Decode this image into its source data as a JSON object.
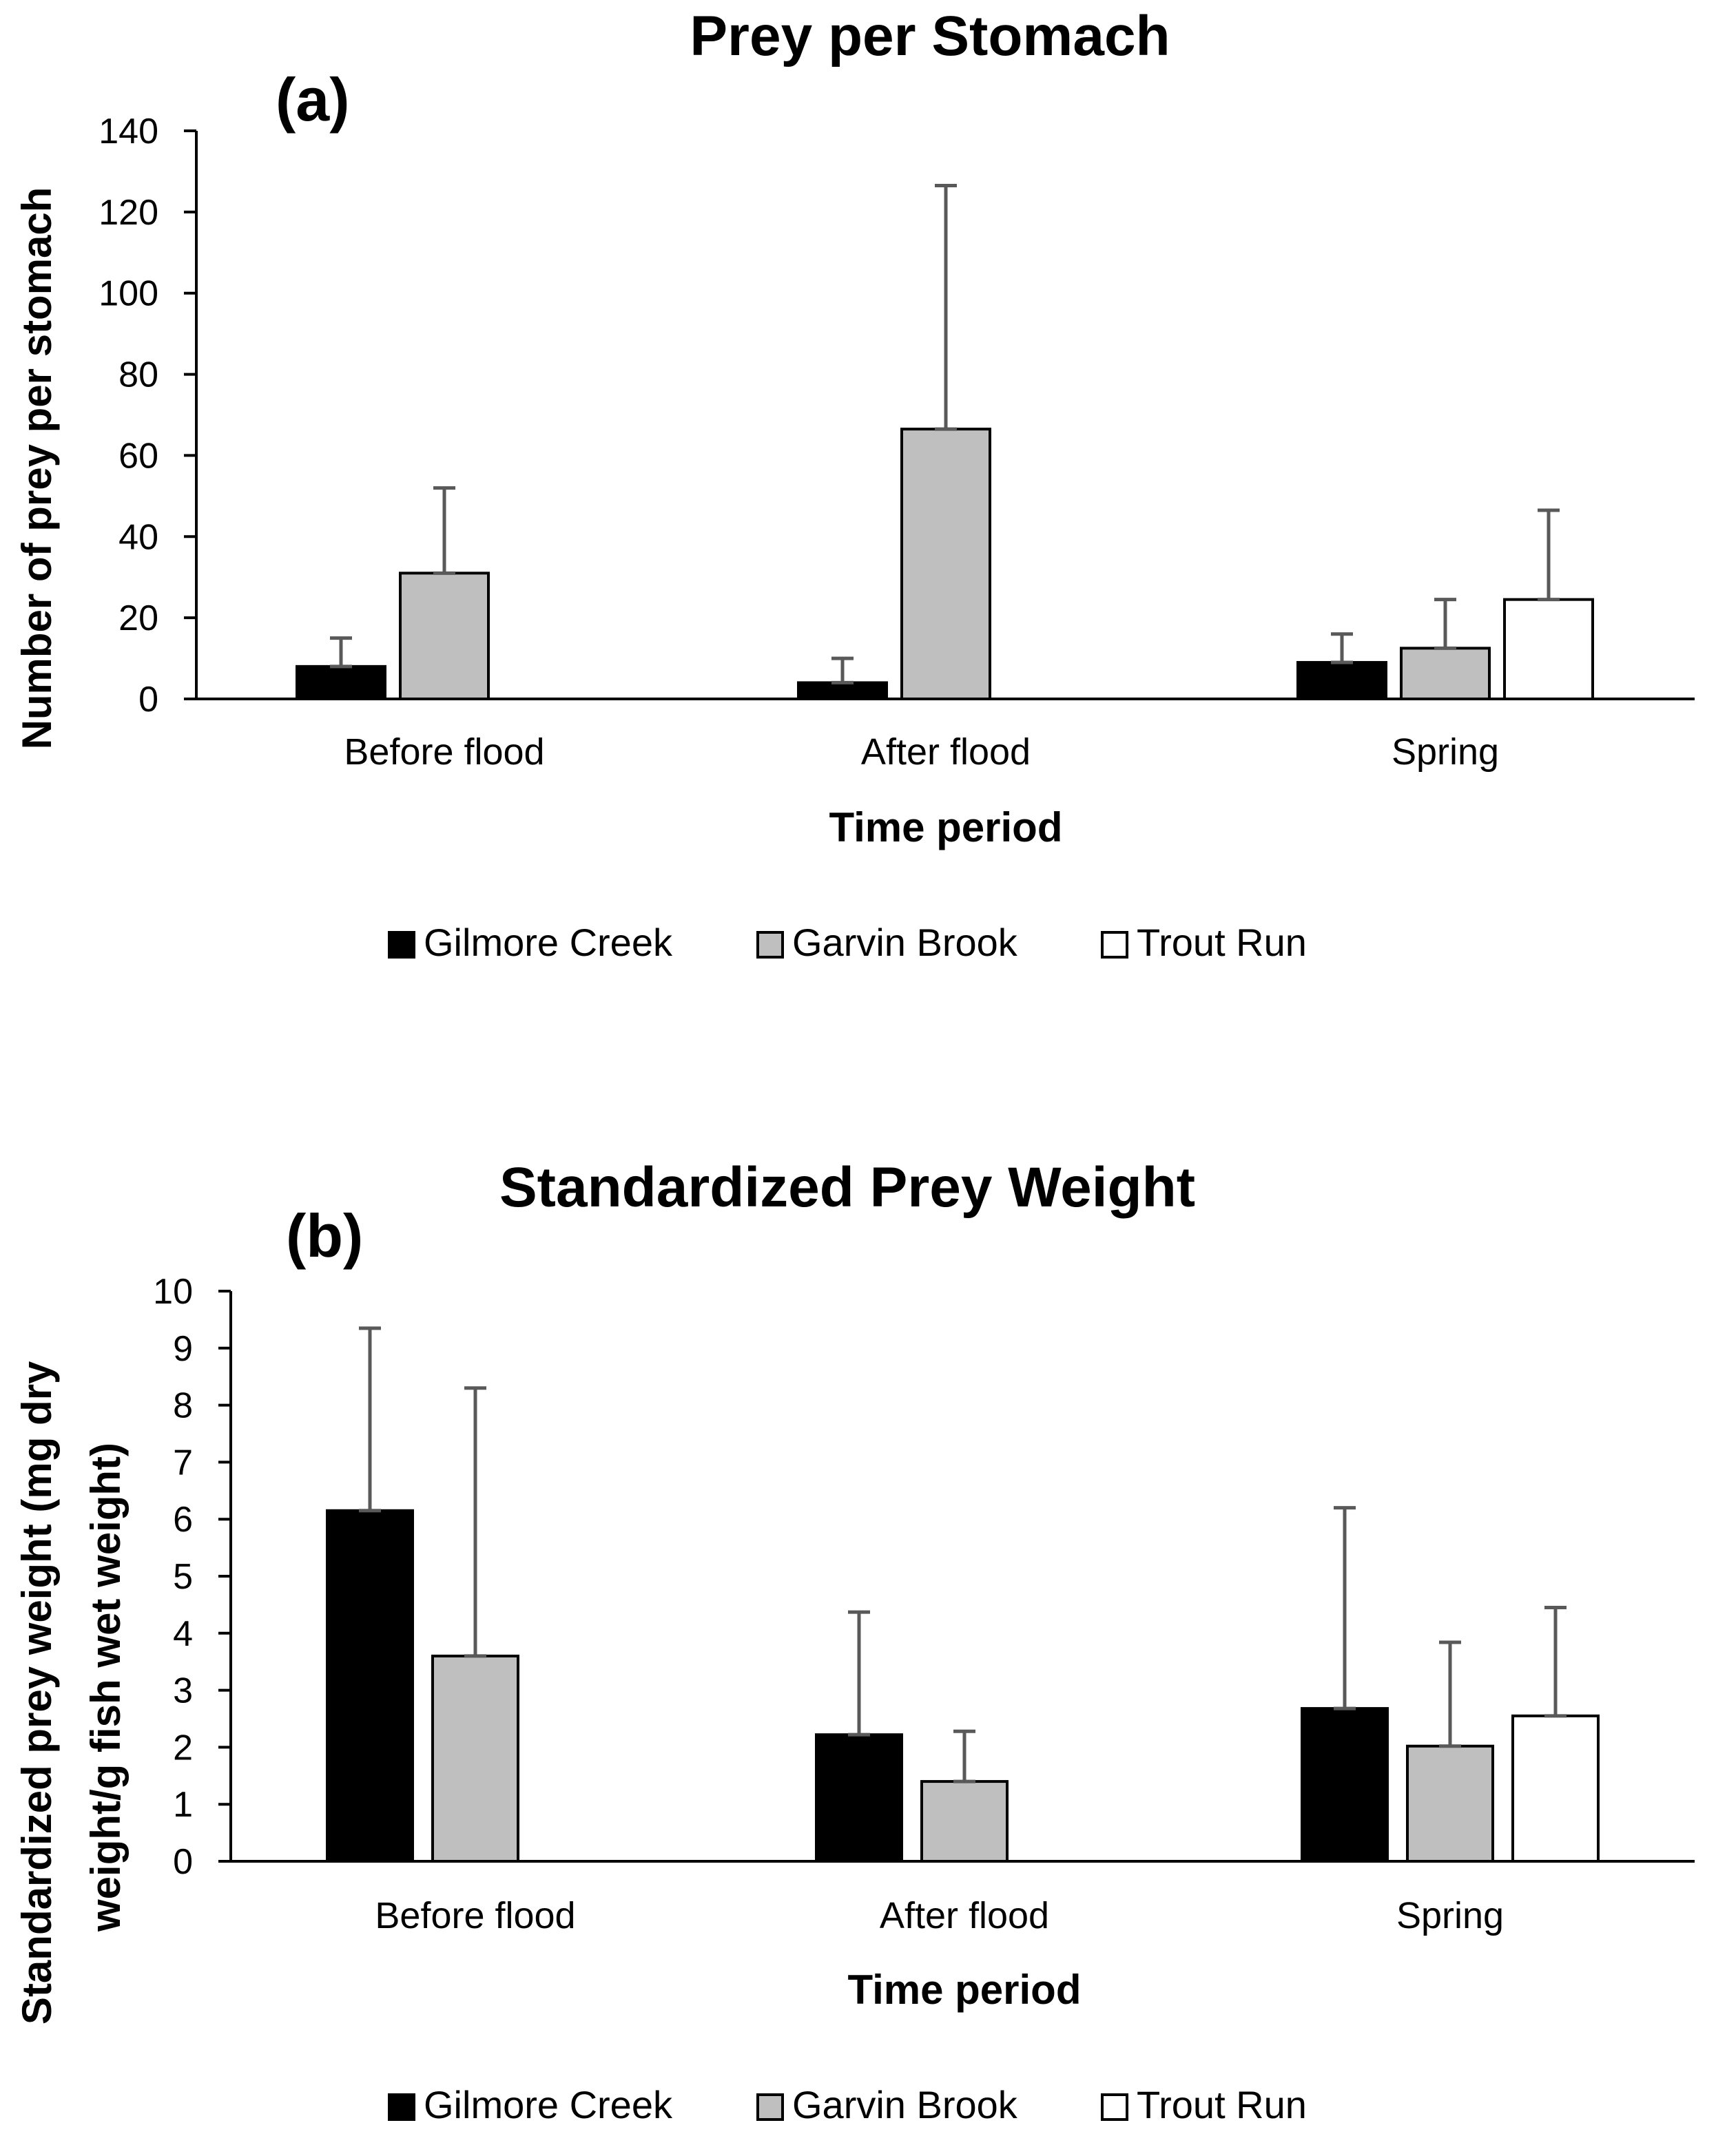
{
  "chart_data": [
    {
      "type": "bar",
      "panel": "(a)",
      "title": "Prey per Stomach",
      "xlabel": "Time period",
      "ylabel": "Number of prey per stomach",
      "ylim": [
        0,
        140
      ],
      "yticks": [
        0,
        20,
        40,
        60,
        80,
        100,
        120,
        140
      ],
      "categories": [
        "Before flood",
        "After flood",
        "Spring"
      ],
      "series": [
        {
          "name": "Gilmore Creek",
          "color": "#000000",
          "values": [
            8,
            4,
            9
          ],
          "error_plus": [
            7,
            6,
            7
          ]
        },
        {
          "name": "Garvin Brook",
          "color": "#bfbfbf",
          "values": [
            31,
            66.5,
            12.5
          ],
          "error_plus": [
            21,
            60,
            12
          ]
        },
        {
          "name": "Trout Run",
          "color": "#ffffff",
          "values": [
            null,
            null,
            24.5
          ],
          "error_plus": [
            null,
            null,
            22
          ]
        }
      ],
      "legend": "bottom"
    },
    {
      "type": "bar",
      "panel": "(b)",
      "title": "Standardized Prey Weight",
      "xlabel": "Time period",
      "ylabel": [
        "Standardized prey weight (mg dry",
        "weight/g fish wet weight)"
      ],
      "ylim": [
        0,
        10
      ],
      "yticks": [
        0,
        1,
        2,
        3,
        4,
        5,
        6,
        7,
        8,
        9,
        10
      ],
      "categories": [
        "Before flood",
        "After flood",
        "Spring"
      ],
      "series": [
        {
          "name": "Gilmore Creek",
          "color": "#000000",
          "values": [
            6.15,
            2.22,
            2.68
          ],
          "error_plus": [
            3.2,
            2.15,
            3.52
          ]
        },
        {
          "name": "Garvin Brook",
          "color": "#bfbfbf",
          "values": [
            3.6,
            1.4,
            2.02
          ],
          "error_plus": [
            4.7,
            0.88,
            1.82
          ]
        },
        {
          "name": "Trout Run",
          "color": "#ffffff",
          "values": [
            null,
            null,
            2.55
          ],
          "error_plus": [
            null,
            null,
            1.9
          ]
        }
      ],
      "legend": "bottom"
    }
  ]
}
